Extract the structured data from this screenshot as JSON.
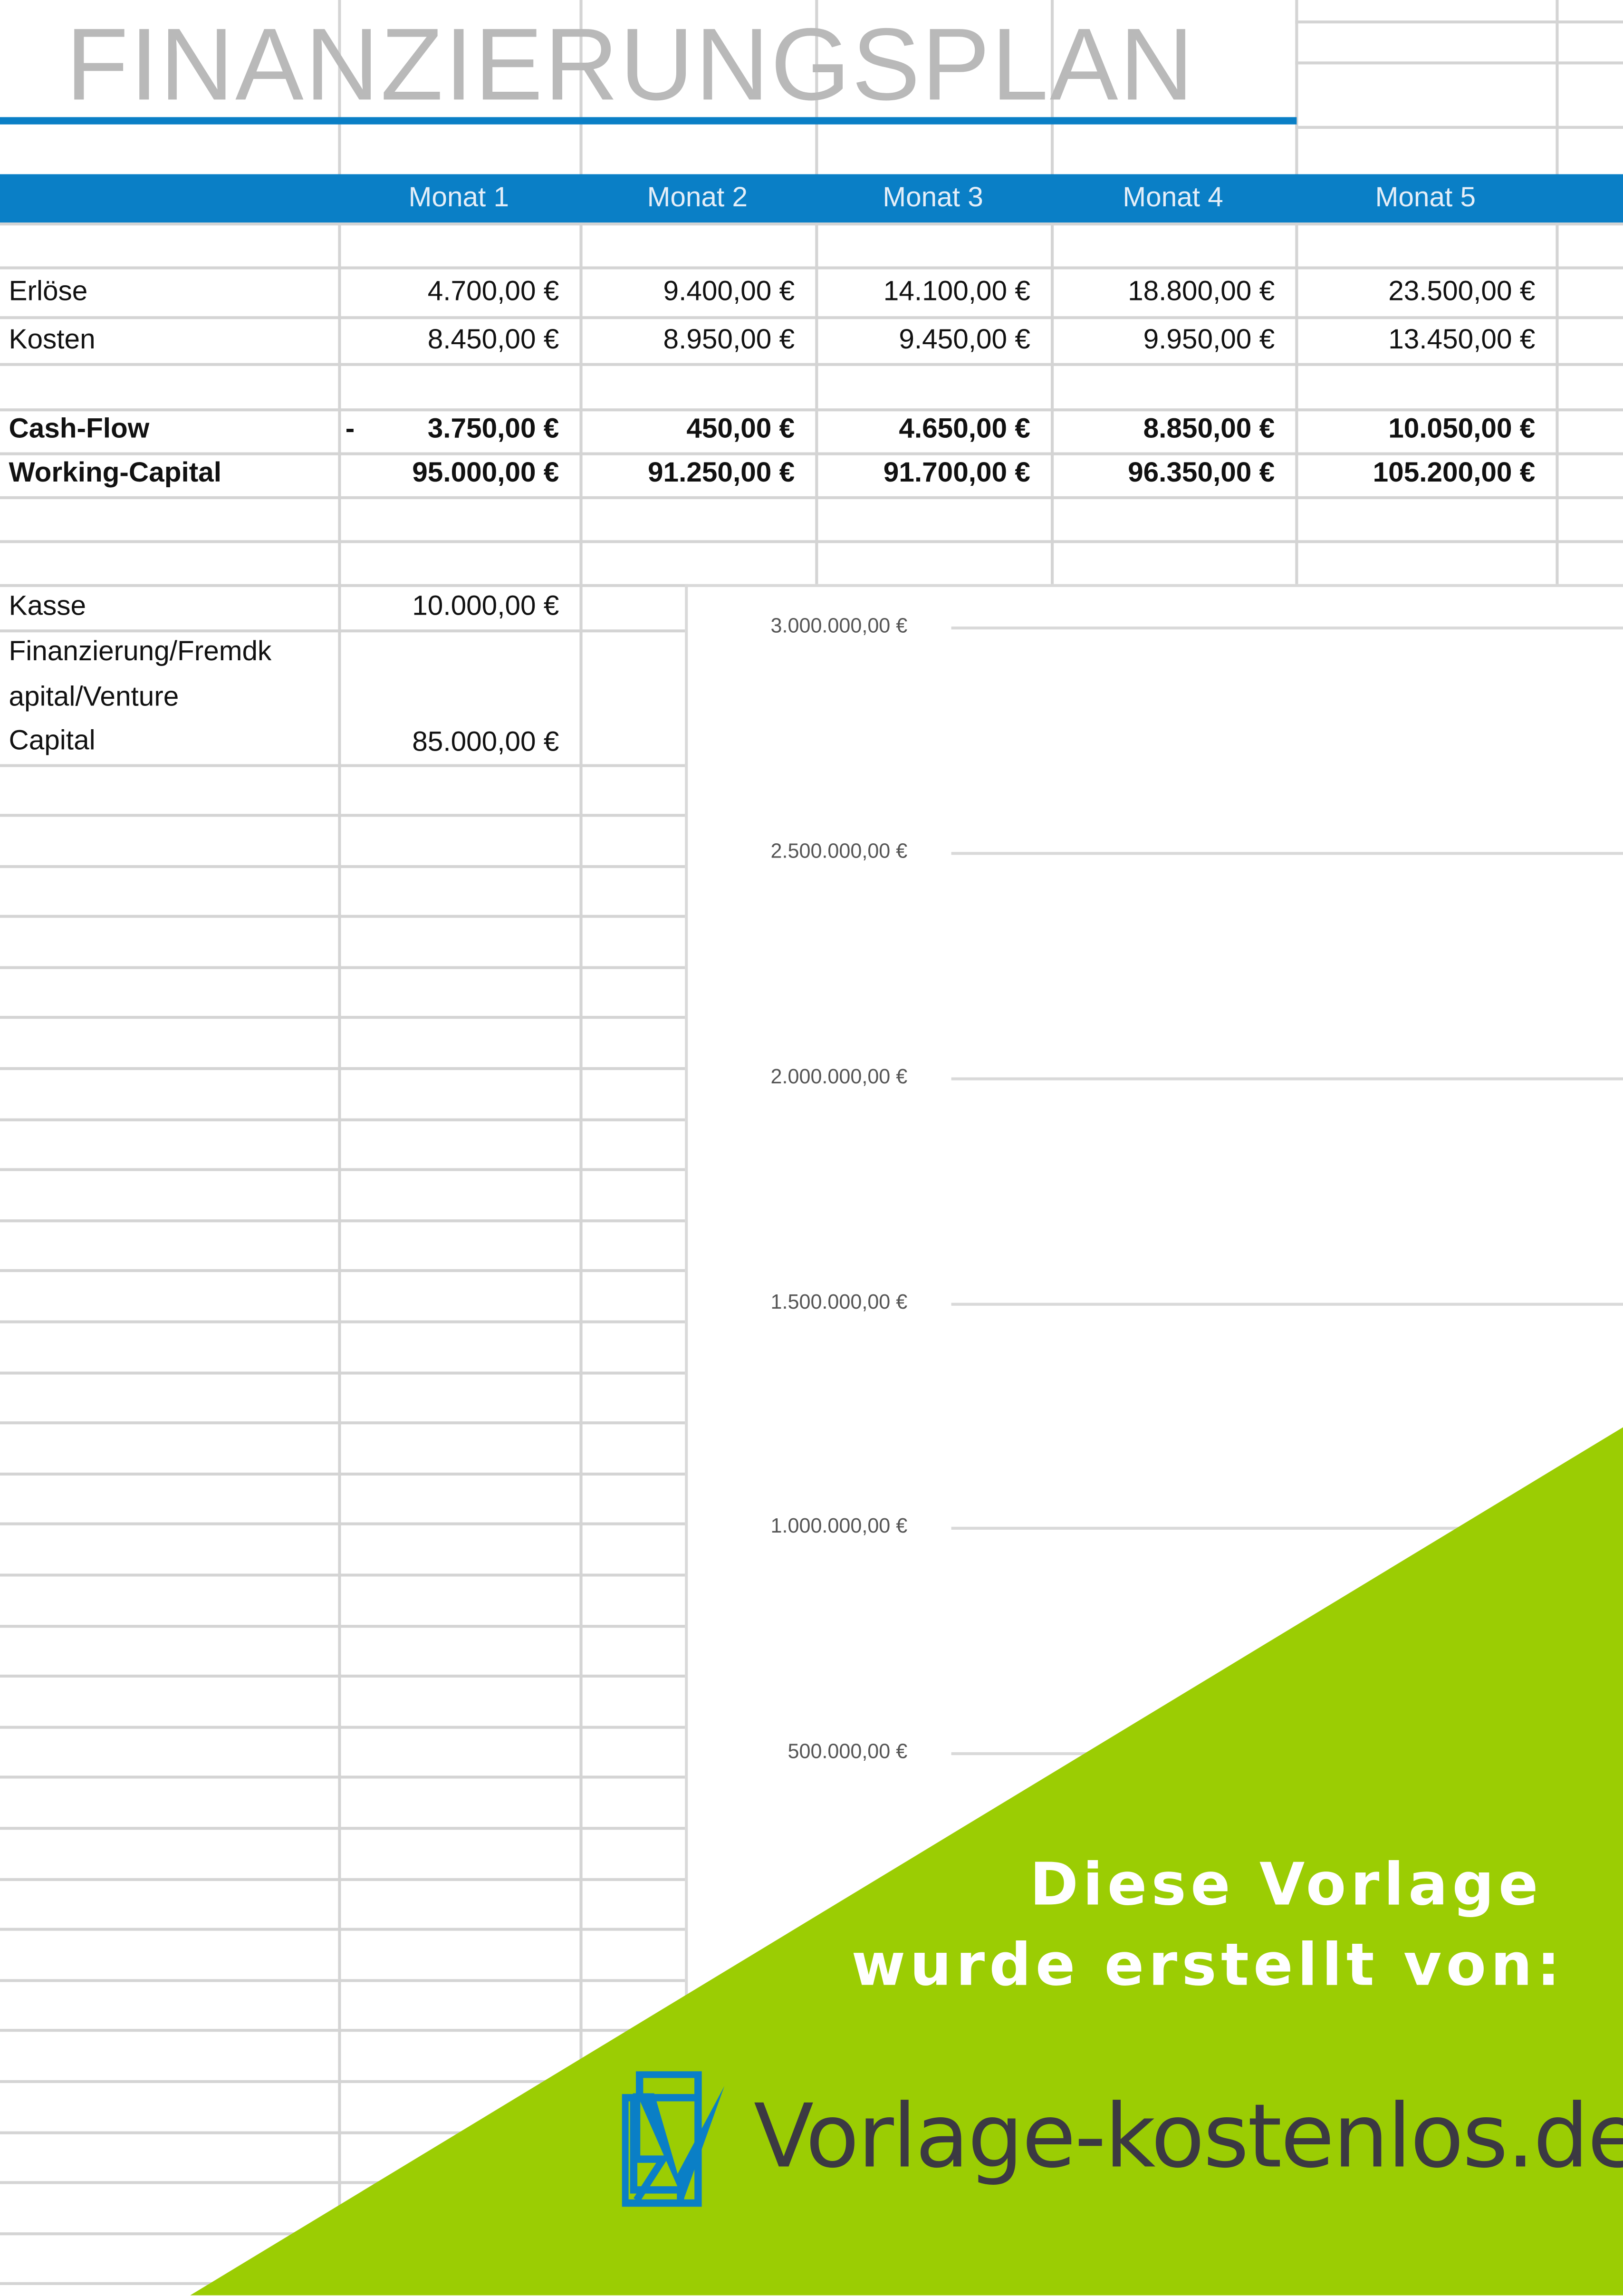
{
  "sheet": {
    "title": "FINANZIERUNGSPLAN",
    "columns": [
      "Monat 1",
      "Monat 2",
      "Monat 3",
      "Monat 4",
      "Monat 5"
    ],
    "rows": [
      {
        "label": "Erlöse",
        "values": [
          "4.700,00 €",
          "9.400,00 €",
          "14.100,00 €",
          "18.800,00 €",
          "23.500,00 €"
        ],
        "bold": false
      },
      {
        "label": "Kosten",
        "values": [
          "8.450,00 €",
          "8.950,00 €",
          "9.450,00 €",
          "9.950,00 €",
          "13.450,00 €"
        ],
        "bold": false
      },
      {
        "label": "Cash-Flow",
        "sign": "-",
        "values": [
          "3.750,00 €",
          "450,00 €",
          "4.650,00 €",
          "8.850,00 €",
          "10.050,00 €"
        ],
        "bold": true
      },
      {
        "label": "Working-Capital",
        "values": [
          "95.000,00 €",
          "91.250,00 €",
          "91.700,00 €",
          "96.350,00 €",
          "105.200,00 €"
        ],
        "bold": true
      }
    ],
    "kasse": {
      "label": "Kasse",
      "value": "10.000,00 €"
    },
    "financing": {
      "label_lines": [
        "Finanzierung/Fremdk",
        "apital/Venture",
        "Capital"
      ],
      "value": "85.000,00 €"
    },
    "header_color": "#0a7fc6"
  },
  "chart": {
    "y_ticks": [
      "3.000.000,00 €",
      "2.500.000,00 €",
      "2.000.000,00 €",
      "1.500.000,00 €",
      "1.000.000,00 €",
      "500.000,00 €"
    ]
  },
  "promo": {
    "line1": "Diese Vorlage",
    "line2": "wurde erstellt von:",
    "site": "Vorlage-kostenlos.de",
    "green": "#9bcd03",
    "logo_icon": "document-checkmark-icon"
  }
}
